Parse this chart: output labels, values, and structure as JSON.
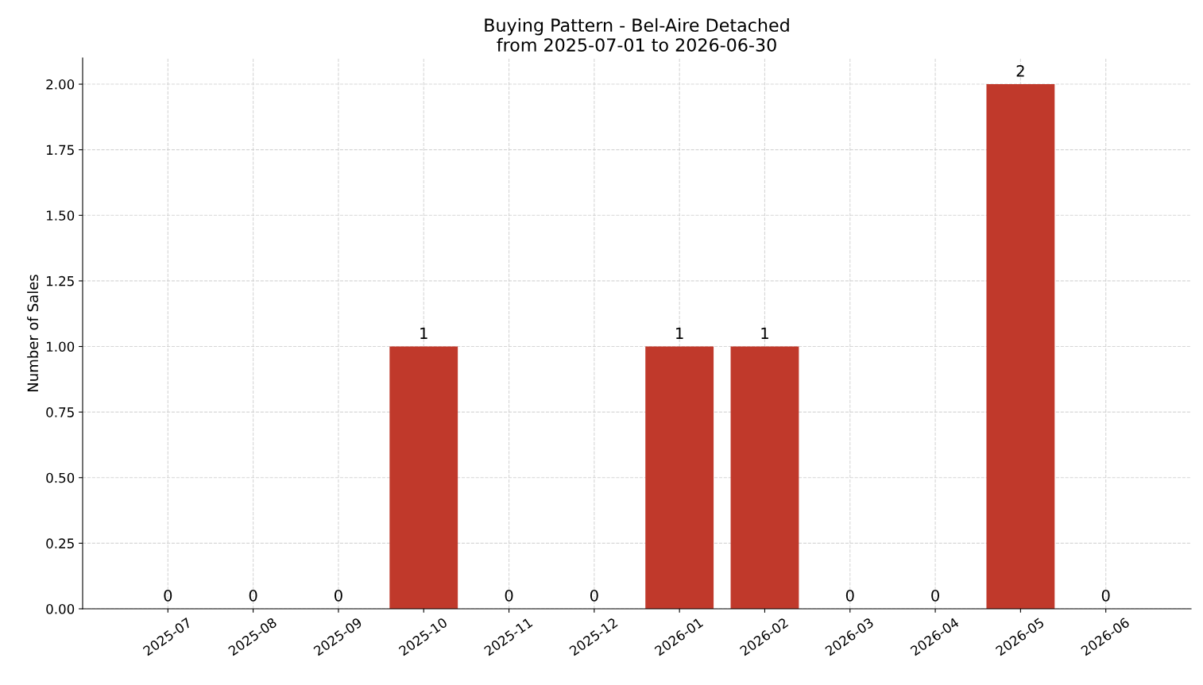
{
  "chart_data": {
    "type": "bar",
    "title": "Buying Pattern - Bel-Aire Detached\nfrom 2025-07-01 to 2026-06-30",
    "ylabel": "Number of Sales",
    "categories": [
      "2025-07",
      "2025-08",
      "2025-09",
      "2025-10",
      "2025-11",
      "2025-12",
      "2026-01",
      "2026-02",
      "2026-03",
      "2026-04",
      "2026-05",
      "2026-06"
    ],
    "values": [
      0,
      0,
      0,
      1,
      0,
      0,
      1,
      1,
      0,
      0,
      2,
      0
    ],
    "color": "#c0392b",
    "ylim": [
      0,
      2.1
    ],
    "yticks": [
      {
        "value": 0,
        "label": "0.00"
      },
      {
        "value": 0.25,
        "label": "0.25"
      },
      {
        "value": 0.5,
        "label": "0.50"
      },
      {
        "value": 0.75,
        "label": "0.75"
      },
      {
        "value": 1,
        "label": "1.00"
      },
      {
        "value": 1.25,
        "label": "1.25"
      },
      {
        "value": 1.5,
        "label": "1.50"
      },
      {
        "value": 1.75,
        "label": "1.75"
      },
      {
        "value": 2,
        "label": "2.00"
      }
    ],
    "grid": true,
    "line_style": "dashed",
    "data_labels": true
  }
}
